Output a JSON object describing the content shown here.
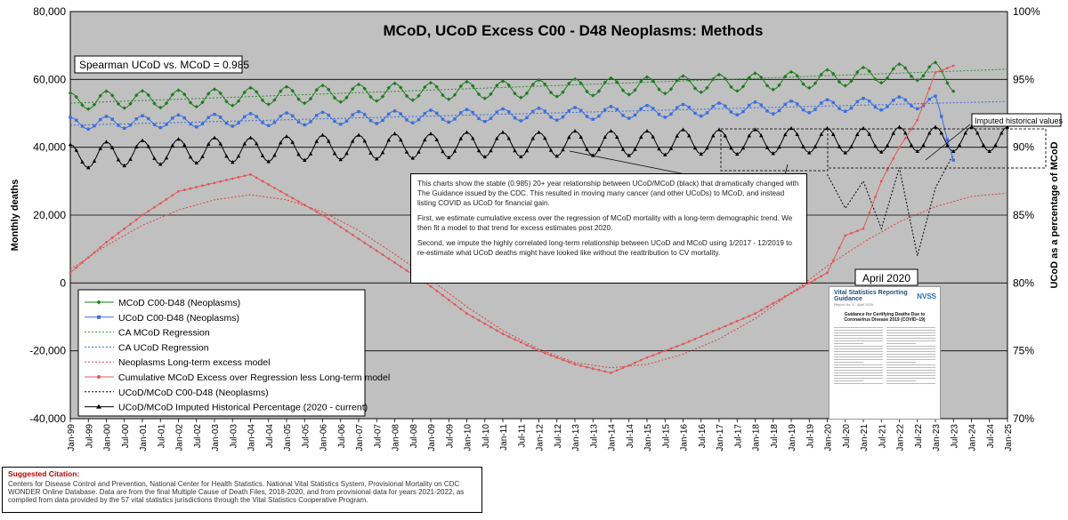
{
  "chart_data": {
    "type": "line",
    "title": "MCoD, UCoD Excess C00 - D48 Neoplasms: Methods",
    "ylabel": "Monthly deaths",
    "y2label": "UCoD as a percentage of MCoD",
    "ylim": [
      -40000,
      80000
    ],
    "y2lim": [
      70,
      100
    ],
    "xlim": [
      "Jan-99",
      "Jan-25"
    ],
    "grid": true,
    "y_ticks": [
      "80,000",
      "60,000",
      "40,000",
      "20,000",
      "0",
      "-20,000",
      "-40,000"
    ],
    "y2_ticks": [
      "100%",
      "95%",
      "90%",
      "85%",
      "80%",
      "75%",
      "70%"
    ],
    "x_ticks": [
      "Jan-99",
      "Jul-99",
      "Jan-00",
      "Jul-00",
      "Jan-01",
      "Jul-01",
      "Jan-02",
      "Jul-02",
      "Jan-03",
      "Jul-03",
      "Jan-04",
      "Jul-04",
      "Jan-05",
      "Jul-05",
      "Jan-06",
      "Jul-06",
      "Jan-07",
      "Jul-07",
      "Jan-08",
      "Jul-08",
      "Jan-09",
      "Jul-09",
      "Jan-10",
      "Jul-10",
      "Jan-11",
      "Jul-11",
      "Jan-12",
      "Jul-12",
      "Jan-13",
      "Jul-13",
      "Jan-14",
      "Jul-14",
      "Jan-15",
      "Jul-15",
      "Jan-16",
      "Jul-16",
      "Jan-17",
      "Jul-17",
      "Jan-18",
      "Jul-18",
      "Jan-19",
      "Jul-19",
      "Jan-20",
      "Jul-20",
      "Jan-21",
      "Jul-21",
      "Jan-22",
      "Jul-22",
      "Jan-23",
      "Jul-23",
      "Jan-24",
      "Jul-24",
      "Jan-25"
    ],
    "legend_position": "bottom-left",
    "series": [
      {
        "name": "MCoD C00-D48 (Neoplasms)",
        "axis": "left",
        "color": "#1e7b1e",
        "style": "solid",
        "marker": "diamond",
        "x": [
          1999.0,
          2000.0,
          2001.0,
          2002.0,
          2003.0,
          2004.0,
          2005.0,
          2006.0,
          2007.0,
          2008.0,
          2009.0,
          2010.0,
          2011.0,
          2012.0,
          2013.0,
          2014.0,
          2015.0,
          2016.0,
          2017.0,
          2018.0,
          2019.0,
          2020.0,
          2021.0,
          2022.0,
          2023.0,
          2023.5
        ],
        "y": [
          53500,
          54000,
          54100,
          54300,
          54600,
          55000,
          55300,
          55700,
          56000,
          56300,
          56500,
          56800,
          57000,
          57300,
          57600,
          57900,
          58200,
          58500,
          58900,
          59300,
          59700,
          60300,
          61000,
          62000,
          62500,
          59000
        ],
        "seasonal_amplitude": 2500
      },
      {
        "name": "UCoD C00-D48 (Neoplasms)",
        "axis": "left",
        "color": "#3a6ee0",
        "style": "solid",
        "marker": "square",
        "x": [
          1999.0,
          2000.0,
          2001.0,
          2002.0,
          2003.0,
          2004.0,
          2005.0,
          2006.0,
          2007.0,
          2008.0,
          2009.0,
          2010.0,
          2011.0,
          2012.0,
          2013.0,
          2014.0,
          2015.0,
          2016.0,
          2017.0,
          2018.0,
          2019.0,
          2020.0,
          2021.0,
          2022.0,
          2023.0,
          2023.5
        ],
        "y": [
          47000,
          47300,
          47500,
          47700,
          47900,
          48100,
          48300,
          48500,
          48700,
          48900,
          49100,
          49300,
          49500,
          49700,
          49900,
          50200,
          50500,
          50800,
          51200,
          51500,
          51800,
          52200,
          52600,
          53000,
          53300,
          38000
        ],
        "seasonal_amplitude": 1800
      },
      {
        "name": "CA MCoD Regression",
        "axis": "left",
        "color": "#2e8b2e",
        "style": "dotted",
        "marker": "none",
        "x": [
          1999,
          2025
        ],
        "y": [
          53000,
          63000
        ]
      },
      {
        "name": "CA UCoD Regression",
        "axis": "left",
        "color": "#3a6ee0",
        "style": "dotted",
        "marker": "none",
        "x": [
          1999,
          2025
        ],
        "y": [
          46500,
          53500
        ]
      },
      {
        "name": "Neoplasms Long-term excess model",
        "axis": "left",
        "color": "#e04040",
        "style": "dotted",
        "marker": "none",
        "x": [
          1999.0,
          2000.0,
          2001.0,
          2002.0,
          2003.0,
          2004.0,
          2005.0,
          2006.0,
          2007.0,
          2008.0,
          2009.0,
          2010.0,
          2011.0,
          2012.0,
          2013.0,
          2014.0,
          2015.0,
          2016.0,
          2017.0,
          2018.0,
          2019.0,
          2020.0,
          2021.0,
          2022.0,
          2023.0,
          2024.0,
          2025.0
        ],
        "y": [
          4000,
          11000,
          17000,
          21500,
          24500,
          26000,
          24500,
          21000,
          15500,
          8500,
          1000,
          -7000,
          -14000,
          -19500,
          -23500,
          -25000,
          -24000,
          -21000,
          -16500,
          -10500,
          -3000,
          5000,
          12000,
          18000,
          22500,
          25500,
          26500
        ]
      },
      {
        "name": "Cumulative MCoD Excess over Regression less Long-term model",
        "axis": "left",
        "color": "#e05a5a",
        "style": "solid",
        "marker": "dot",
        "x": [
          1999.0,
          2000.0,
          2001.0,
          2002.0,
          2003.0,
          2004.0,
          2005.0,
          2006.0,
          2007.0,
          2008.0,
          2009.0,
          2010.0,
          2011.0,
          2012.0,
          2013.0,
          2014.0,
          2015.0,
          2016.0,
          2017.0,
          2018.0,
          2019.0,
          2020.0,
          2020.5,
          2021.0,
          2021.5,
          2022.0,
          2022.5,
          2023.0,
          2023.5
        ],
        "y": [
          3000,
          12000,
          20000,
          27000,
          29500,
          32000,
          26000,
          20000,
          13000,
          6000,
          -1000,
          -9000,
          -15000,
          -20000,
          -24000,
          -26500,
          -22000,
          -18000,
          -13500,
          -9000,
          -3000,
          3000,
          14000,
          16000,
          30000,
          40000,
          48000,
          62000,
          64000
        ]
      },
      {
        "name": "UCoD/MCoD C00-D48 (Neoplasms)",
        "axis": "right",
        "color": "#000000",
        "style": "dotted",
        "marker": "none",
        "x": [
          2020.0,
          2020.5,
          2021.0,
          2021.5,
          2022.0,
          2022.5,
          2023.0,
          2023.5
        ],
        "y": [
          88.0,
          85.5,
          87.5,
          84.0,
          88.5,
          82.0,
          87.0,
          89.5
        ]
      },
      {
        "name": "UCoD/MCoD Imputed Historical Percentage (2020 - current)",
        "axis": "right",
        "color": "#000000",
        "style": "solid",
        "marker": "triangle",
        "x": [
          1999.0,
          2000.0,
          2001.0,
          2002.0,
          2003.0,
          2004.0,
          2005.0,
          2006.0,
          2007.0,
          2008.0,
          2009.0,
          2010.0,
          2011.0,
          2012.0,
          2013.0,
          2014.0,
          2015.0,
          2016.0,
          2017.0,
          2018.0,
          2019.0,
          2020.0,
          2021.0,
          2022.0,
          2023.0,
          2024.0,
          2025.0
        ],
        "y": [
          89.3,
          89.5,
          89.6,
          89.7,
          89.8,
          89.8,
          89.9,
          90.0,
          90.0,
          90.1,
          90.1,
          90.2,
          90.2,
          90.2,
          90.3,
          90.3,
          90.3,
          90.4,
          90.4,
          90.4,
          90.5,
          90.5,
          90.5,
          90.6,
          90.6,
          90.6,
          90.6
        ],
        "seasonal_amplitude": 0.9
      }
    ],
    "annotations": [
      {
        "id": "spearman",
        "text": "Spearman UCoD vs. MCoD = 0.985"
      },
      {
        "id": "april",
        "text": "April 2020"
      },
      {
        "id": "imputed",
        "text": "Imputed historical values"
      }
    ]
  },
  "memo": {
    "p1": "This charts show the stable (0.985) 20+ year relationship between UCoD/MCoD (black) that dramatically changed with The Guidance issued by the CDC. This resulted in moving many cancer (and other UCoDs) to MCoD, and instead listing COVID as UCoD for financial gain.",
    "p2": "First, we estimate cumulative excess over the regression of MCoD mortality with a long-term demographic trend. We then fit a model to that trend for excess estimates post 2020.",
    "p3": "Second, we impute the highly correlated long-term relationship between UCoD and MCoD using 1/2017 - 12/2019 to re-estimate what UCoD deaths might have looked like without the reattribution to CV mortality."
  },
  "citation": {
    "title": "Suggested Citation:",
    "body": "Centers for Disease Control and Prevention, National Center for Health Statistics. National Vital Statistics System, Provisional Mortality on CDC WONDER Online Database. Data are from the final Multiple Cause of Death Files, 2018-2020, and from provisional data for years 2021-2022, as compiled from data provided by the 57 vital statistics jurisdictions through the Vital Statistics Cooperative Program."
  },
  "doc": {
    "header": "Vital Statistics Reporting Guidance",
    "logo": "NVSS",
    "subheader": "Report No. 3 · April 2020",
    "title": "Guidance for Certifying Deaths Due to Coronavirus Disease 2019 (COVID–19)"
  },
  "colors": {
    "plot_bg": "#c0c0c0",
    "accent_red": "#e05a5a"
  }
}
